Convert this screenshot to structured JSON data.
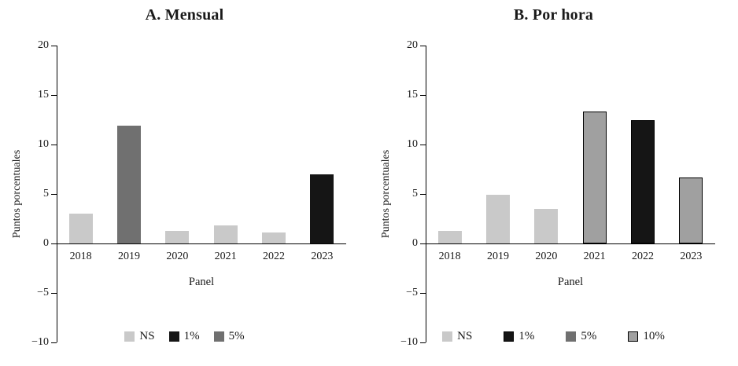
{
  "chart_data": [
    {
      "type": "bar",
      "title": "A. Mensual",
      "ylabel": "Puntos porcentuales",
      "xlabel": "Panel",
      "ylim": [
        -10,
        20
      ],
      "yticks": [
        20,
        15,
        10,
        5,
        0,
        -5,
        -10
      ],
      "grid": false,
      "legend_position": "bottom",
      "categories": [
        "2018",
        "2019",
        "2020",
        "2021",
        "2022",
        "2023"
      ],
      "values": [
        3.0,
        11.9,
        1.3,
        1.8,
        1.1,
        7.0
      ],
      "significance": [
        "NS",
        "5%",
        "NS",
        "NS",
        "NS",
        "1%"
      ],
      "legend": [
        {
          "label": "NS",
          "color": "#c9c9c9",
          "border": "none"
        },
        {
          "label": "1%",
          "color": "#151515",
          "border": "none"
        },
        {
          "label": "5%",
          "color": "#707070",
          "border": "none"
        }
      ]
    },
    {
      "type": "bar",
      "title": "B. Por hora",
      "ylabel": "Puntos porcentuales",
      "xlabel": "Panel",
      "ylim": [
        -10,
        20
      ],
      "yticks": [
        20,
        15,
        10,
        5,
        0,
        -5,
        -10
      ],
      "grid": false,
      "legend_position": "bottom",
      "categories": [
        "2018",
        "2019",
        "2020",
        "2021",
        "2022",
        "2023"
      ],
      "values": [
        1.3,
        4.9,
        3.5,
        13.3,
        12.5,
        6.7
      ],
      "significance": [
        "NS",
        "NS",
        "NS",
        "10%",
        "1%",
        "10%"
      ],
      "legend": [
        {
          "label": "NS",
          "color": "#c9c9c9",
          "border": "none"
        },
        {
          "label": "1%",
          "color": "#151515",
          "border": "#000000"
        },
        {
          "label": "5%",
          "color": "#707070",
          "border": "none"
        },
        {
          "label": "10%",
          "color": "#a0a0a0",
          "border": "#000000"
        }
      ]
    }
  ]
}
